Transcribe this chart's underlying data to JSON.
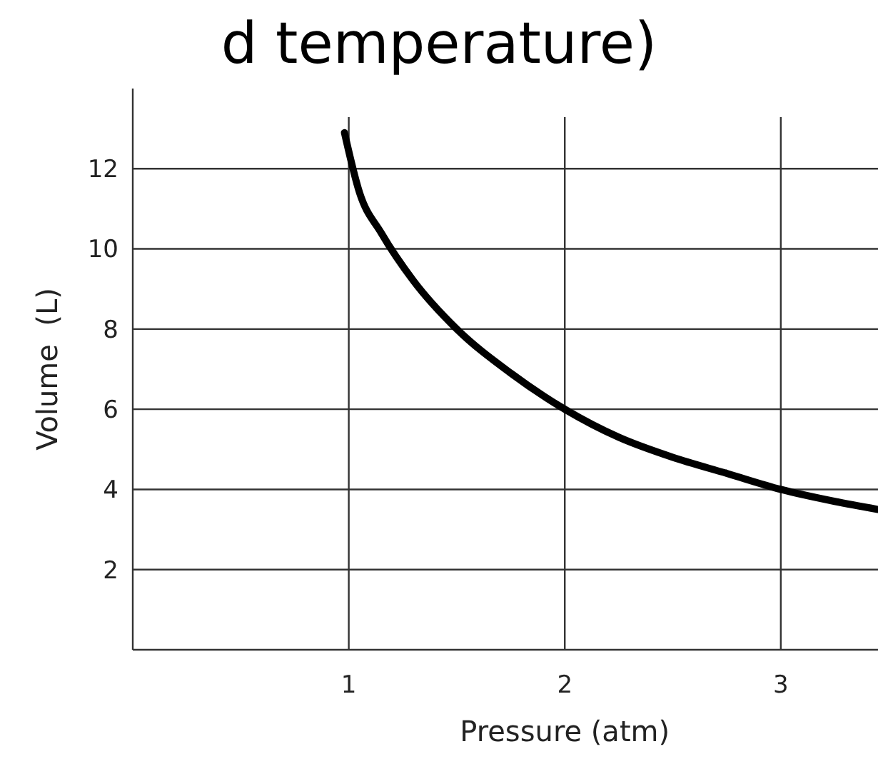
{
  "chart_data": {
    "type": "line",
    "title": "d temperature)",
    "xlabel": "Pressure (atm)",
    "ylabel": "Volume  (L)",
    "x": [
      0.98,
      1.05,
      1.15,
      1.3,
      1.5,
      1.75,
      2,
      2.25,
      2.5,
      2.75,
      3,
      3.25,
      3.45
    ],
    "values": [
      12.9,
      11.4,
      10.4,
      9.2,
      8,
      6.9,
      6,
      5.3,
      4.8,
      4.4,
      4,
      3.7,
      3.5
    ],
    "color": "#000000",
    "xlim": [
      0,
      3.45
    ],
    "ylim": [
      0,
      14
    ],
    "xticks": [
      1,
      2,
      3
    ],
    "yticks": [
      2,
      4,
      6,
      8,
      10,
      12
    ],
    "grid": true,
    "marker": "none",
    "line_style": "solid"
  }
}
